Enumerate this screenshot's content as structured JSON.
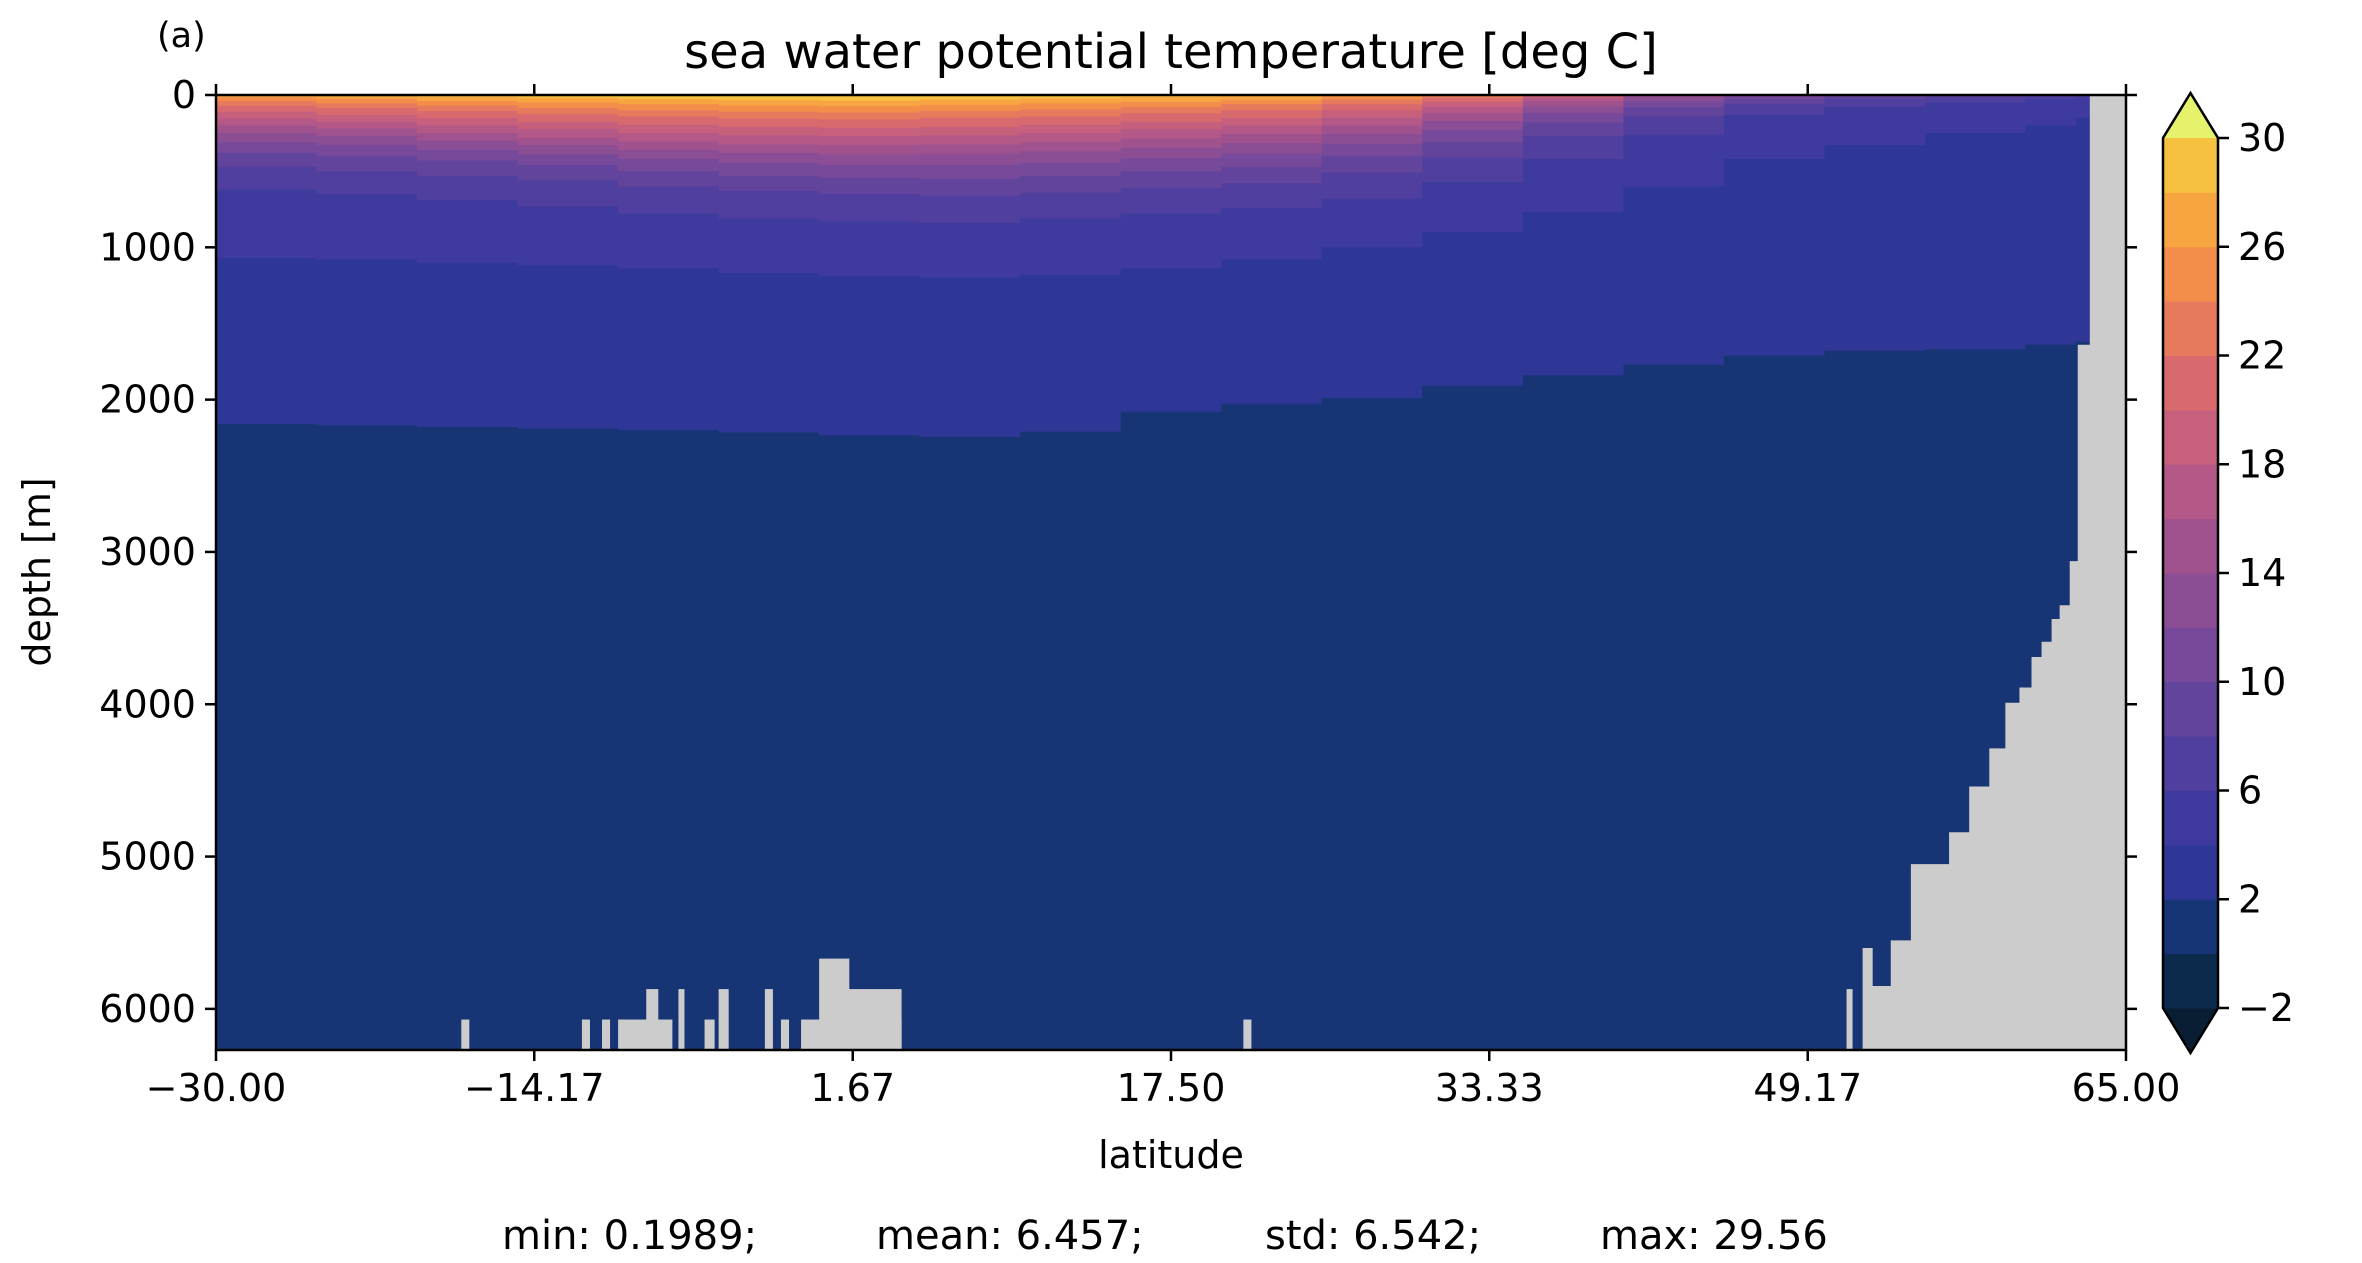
{
  "figure": {
    "panel_label": "(a)",
    "stats": {
      "min": "min: 0.1989;",
      "mean": "mean: 6.457;",
      "std": "std: 6.542;",
      "max": "max: 29.56"
    }
  },
  "chart_data": {
    "type": "heatmap",
    "title": "sea water potential temperature [deg C]",
    "xlabel": "latitude",
    "ylabel": "depth [m]",
    "xlim": [
      -30.0,
      65.0
    ],
    "ylim": [
      6270,
      0
    ],
    "y_inverted": true,
    "grid": false,
    "x_ticks": [
      -30.0,
      -14.17,
      1.67,
      17.5,
      33.33,
      49.17,
      65.0
    ],
    "x_tick_labels": [
      "−30.00",
      "−14.17",
      "1.67",
      "17.50",
      "33.33",
      "49.17",
      "65.00"
    ],
    "y_ticks": [
      0,
      1000,
      2000,
      3000,
      4000,
      5000,
      6000
    ],
    "y_tick_labels": [
      "0",
      "1000",
      "2000",
      "3000",
      "4000",
      "5000",
      "6000"
    ],
    "colorbar": {
      "levels": [
        -2,
        0,
        2,
        4,
        6,
        8,
        10,
        12,
        14,
        16,
        18,
        20,
        22,
        24,
        26,
        28,
        30
      ],
      "tick_values": [
        -2,
        2,
        6,
        10,
        14,
        18,
        22,
        26,
        30
      ],
      "tick_labels": [
        "−2",
        "2",
        "6",
        "10",
        "14",
        "18",
        "22",
        "26",
        "30"
      ],
      "extend": "both",
      "under_color": "#0a1e33",
      "over_color": "#e6f26b",
      "bin_colors": [
        "#0b2a4c",
        "#173574",
        "#2f3796",
        "#3f3a9e",
        "#503f9e",
        "#63449c",
        "#77499a",
        "#8b4e95",
        "#a0528f",
        "#b35887",
        "#c6607c",
        "#d86a6e",
        "#e77a5c",
        "#f28d4a",
        "#f7a540",
        "#f6c040",
        "#ede15a"
      ]
    },
    "isotherm_depths_m": {
      "latitude": [
        -30,
        -25,
        -20,
        -15,
        -10,
        -5,
        0,
        5,
        10,
        15,
        20,
        25,
        30,
        35,
        40,
        45,
        50,
        55,
        60,
        62.5
      ],
      "t2": [
        2160,
        2170,
        2180,
        2190,
        2200,
        2215,
        2235,
        2245,
        2210,
        2080,
        2030,
        1990,
        1910,
        1840,
        1770,
        1710,
        1680,
        1670,
        1640,
        1620
      ],
      "t4": [
        1070,
        1080,
        1100,
        1120,
        1140,
        1170,
        1190,
        1200,
        1180,
        1140,
        1080,
        1000,
        900,
        770,
        600,
        420,
        330,
        250,
        200,
        150
      ],
      "t6": [
        620,
        650,
        690,
        730,
        780,
        810,
        830,
        840,
        810,
        780,
        740,
        680,
        570,
        420,
        260,
        130,
        80,
        50,
        25,
        15
      ],
      "t8": [
        470,
        500,
        530,
        560,
        600,
        630,
        650,
        660,
        640,
        610,
        580,
        510,
        410,
        270,
        140,
        60,
        25,
        12,
        5,
        2
      ],
      "t10": [
        380,
        400,
        430,
        460,
        500,
        530,
        545,
        550,
        530,
        500,
        470,
        400,
        310,
        180,
        80,
        25,
        8,
        3,
        1,
        1
      ],
      "t12": [
        310,
        330,
        360,
        390,
        420,
        445,
        460,
        460,
        445,
        415,
        385,
        320,
        230,
        120,
        40,
        8,
        2,
        1,
        1,
        1
      ],
      "t14": [
        250,
        270,
        300,
        330,
        360,
        380,
        390,
        385,
        370,
        345,
        315,
        255,
        170,
        75,
        15,
        3,
        1,
        1,
        1,
        1
      ],
      "t16": [
        200,
        220,
        250,
        280,
        305,
        325,
        330,
        325,
        310,
        285,
        255,
        200,
        120,
        40,
        5,
        1,
        1,
        1,
        1,
        1
      ],
      "t18": [
        155,
        175,
        200,
        225,
        250,
        265,
        270,
        265,
        250,
        225,
        200,
        150,
        80,
        20,
        1,
        1,
        1,
        1,
        1,
        1
      ],
      "t20": [
        110,
        130,
        150,
        175,
        195,
        210,
        215,
        210,
        195,
        175,
        150,
        100,
        45,
        8,
        1,
        1,
        1,
        1,
        1,
        1
      ],
      "t22": [
        70,
        85,
        105,
        125,
        140,
        155,
        160,
        150,
        140,
        120,
        100,
        60,
        20,
        2,
        1,
        1,
        1,
        1,
        1,
        1
      ],
      "t24": [
        40,
        55,
        70,
        85,
        100,
        110,
        115,
        105,
        95,
        80,
        60,
        30,
        8,
        1,
        1,
        1,
        1,
        1,
        1,
        1
      ],
      "t26": [
        15,
        25,
        40,
        50,
        60,
        70,
        75,
        65,
        55,
        45,
        30,
        10,
        2,
        1,
        1,
        1,
        1,
        1,
        1,
        1
      ],
      "t28": [
        2,
        5,
        12,
        20,
        28,
        34,
        38,
        30,
        22,
        12,
        5,
        1,
        1,
        1,
        1,
        1,
        1,
        1,
        1,
        1
      ]
    },
    "land_mask_color": "#cccccc",
    "seafloor_profile": {
      "latitude": [
        51.9,
        52.4,
        52.8,
        53.3,
        54.3,
        55.1,
        56.2,
        57.2,
        58.2,
        59.0,
        59.7,
        60.3,
        60.8,
        61.3,
        61.7,
        62.2,
        62.6,
        62.9,
        63.2
      ],
      "depth": [
        5600,
        5850,
        5850,
        5550,
        5050,
        5050,
        4840,
        4540,
        4290,
        3990,
        3890,
        3690,
        3590,
        3440,
        3350,
        3060,
        1640,
        1640,
        0
      ]
    },
    "seafloor_spikes": [
      {
        "lat": [
          -17.8,
          -17.4
        ],
        "top": 6070
      },
      {
        "lat": [
          -11.8,
          -11.4
        ],
        "top": 6070
      },
      {
        "lat": [
          -10.8,
          -10.4
        ],
        "top": 6070
      },
      {
        "lat": [
          -10.0,
          -7.3
        ],
        "top": 6070
      },
      {
        "lat": [
          -8.6,
          -8.0
        ],
        "top": 5870
      },
      {
        "lat": [
          -7.0,
          -6.7
        ],
        "top": 5870
      },
      {
        "lat": [
          -5.7,
          -5.2
        ],
        "top": 6070
      },
      {
        "lat": [
          -5.0,
          -4.5
        ],
        "top": 5870
      },
      {
        "lat": [
          -2.7,
          -2.3
        ],
        "top": 5870
      },
      {
        "lat": [
          -1.9,
          -1.5
        ],
        "top": 6070
      },
      {
        "lat": [
          -0.9,
          4.1
        ],
        "top": 6070
      },
      {
        "lat": [
          0.0,
          1.5
        ],
        "top": 5670
      },
      {
        "lat": [
          1.0,
          4.1
        ],
        "top": 5870
      },
      {
        "lat": [
          21.1,
          21.5
        ],
        "top": 6070
      },
      {
        "lat": [
          51.1,
          51.4
        ],
        "top": 5870
      }
    ]
  }
}
